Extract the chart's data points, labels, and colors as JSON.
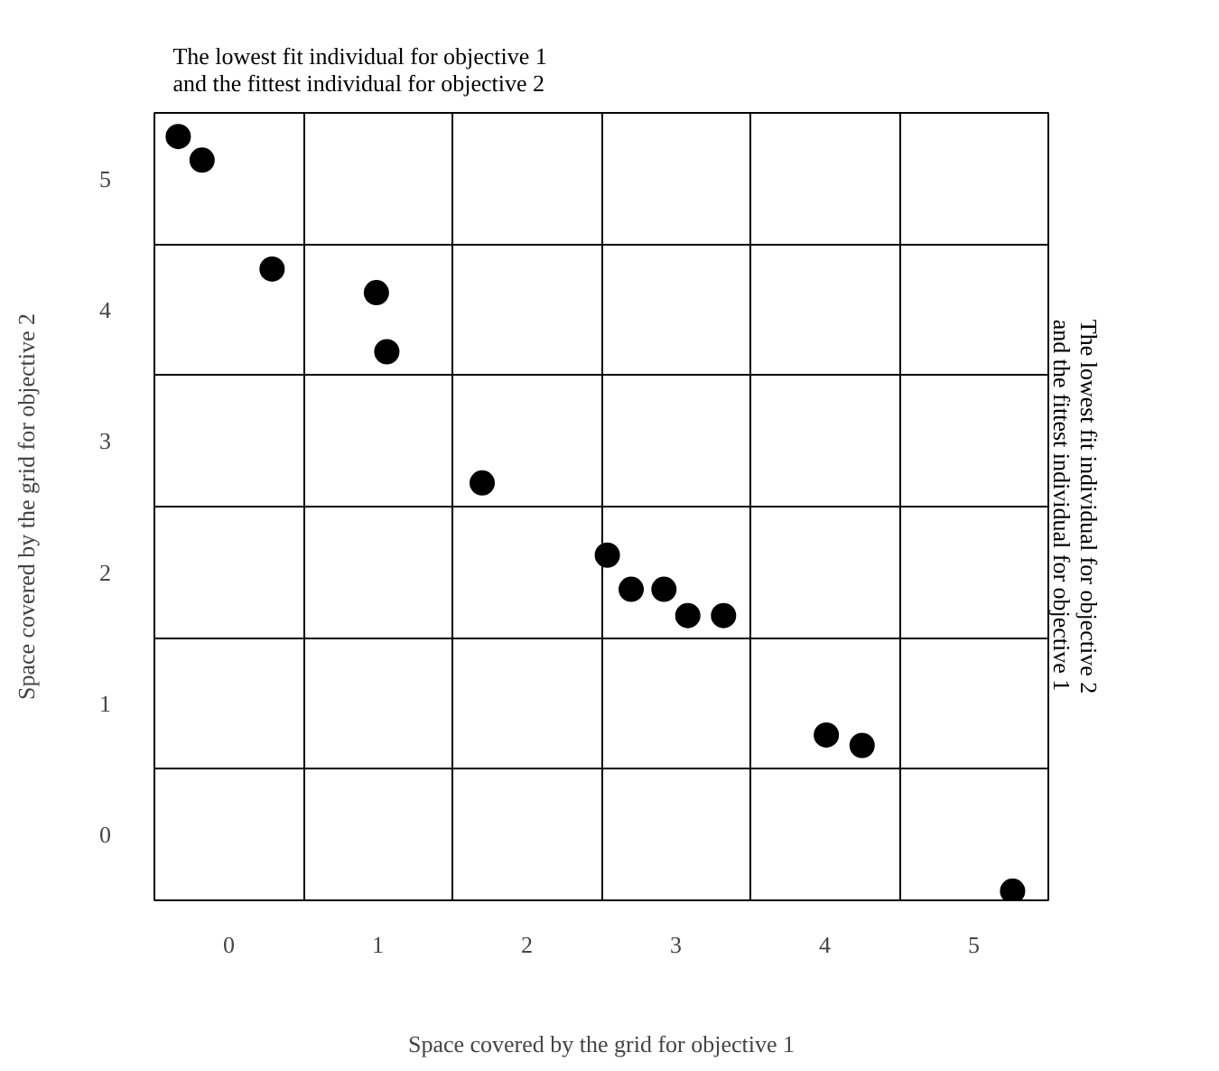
{
  "chart_data": {
    "type": "scatter",
    "xlabel": "Space covered by the grid for objective 1",
    "ylabel": "Space covered by the grid for objective 2",
    "x": [
      -0.34,
      -0.18,
      0.29,
      0.99,
      1.06,
      1.7,
      2.54,
      2.7,
      2.92,
      3.08,
      3.32,
      4.01,
      4.25,
      5.26
    ],
    "series": [
      {
        "color": "#000000",
        "values": [
          5.32,
          5.14,
          4.31,
          4.13,
          3.68,
          2.68,
          2.13,
          1.87,
          1.87,
          1.67,
          1.67,
          0.76,
          0.68,
          -0.43
        ]
      }
    ],
    "xlim": [
      -0.5,
      5.5
    ],
    "ylim": [
      -0.5,
      5.5
    ],
    "xticks": [
      {
        "value": -0.5,
        "label": null
      },
      0,
      {
        "value": 0.5,
        "label": null
      },
      1,
      {
        "value": 1.5,
        "label": null
      },
      2,
      {
        "value": 2.5,
        "label": null
      },
      3,
      {
        "value": 3.5,
        "label": null
      },
      4,
      {
        "value": 4.5,
        "label": null
      },
      5,
      {
        "value": 5.5,
        "label": null
      }
    ],
    "yticks": [
      {
        "value": -0.5,
        "label": null
      },
      0,
      {
        "value": 0.5,
        "label": null
      },
      1,
      {
        "value": 1.5,
        "label": null
      },
      2,
      {
        "value": 2.5,
        "label": null
      },
      3,
      {
        "value": 3.5,
        "label": null
      },
      4,
      {
        "value": 4.5,
        "label": null
      },
      5,
      {
        "value": 5.5,
        "label": null
      }
    ],
    "grid": true,
    "marker": "circle",
    "annotations": [
      {
        "text": "The lowest fit individual for objective 1\nand the fittest individual for objective 2",
        "x": -0.34,
        "y": 5.32
      },
      "The lowest fit individual for objective 2\nand the fittest individual for objective 1"
    ]
  }
}
